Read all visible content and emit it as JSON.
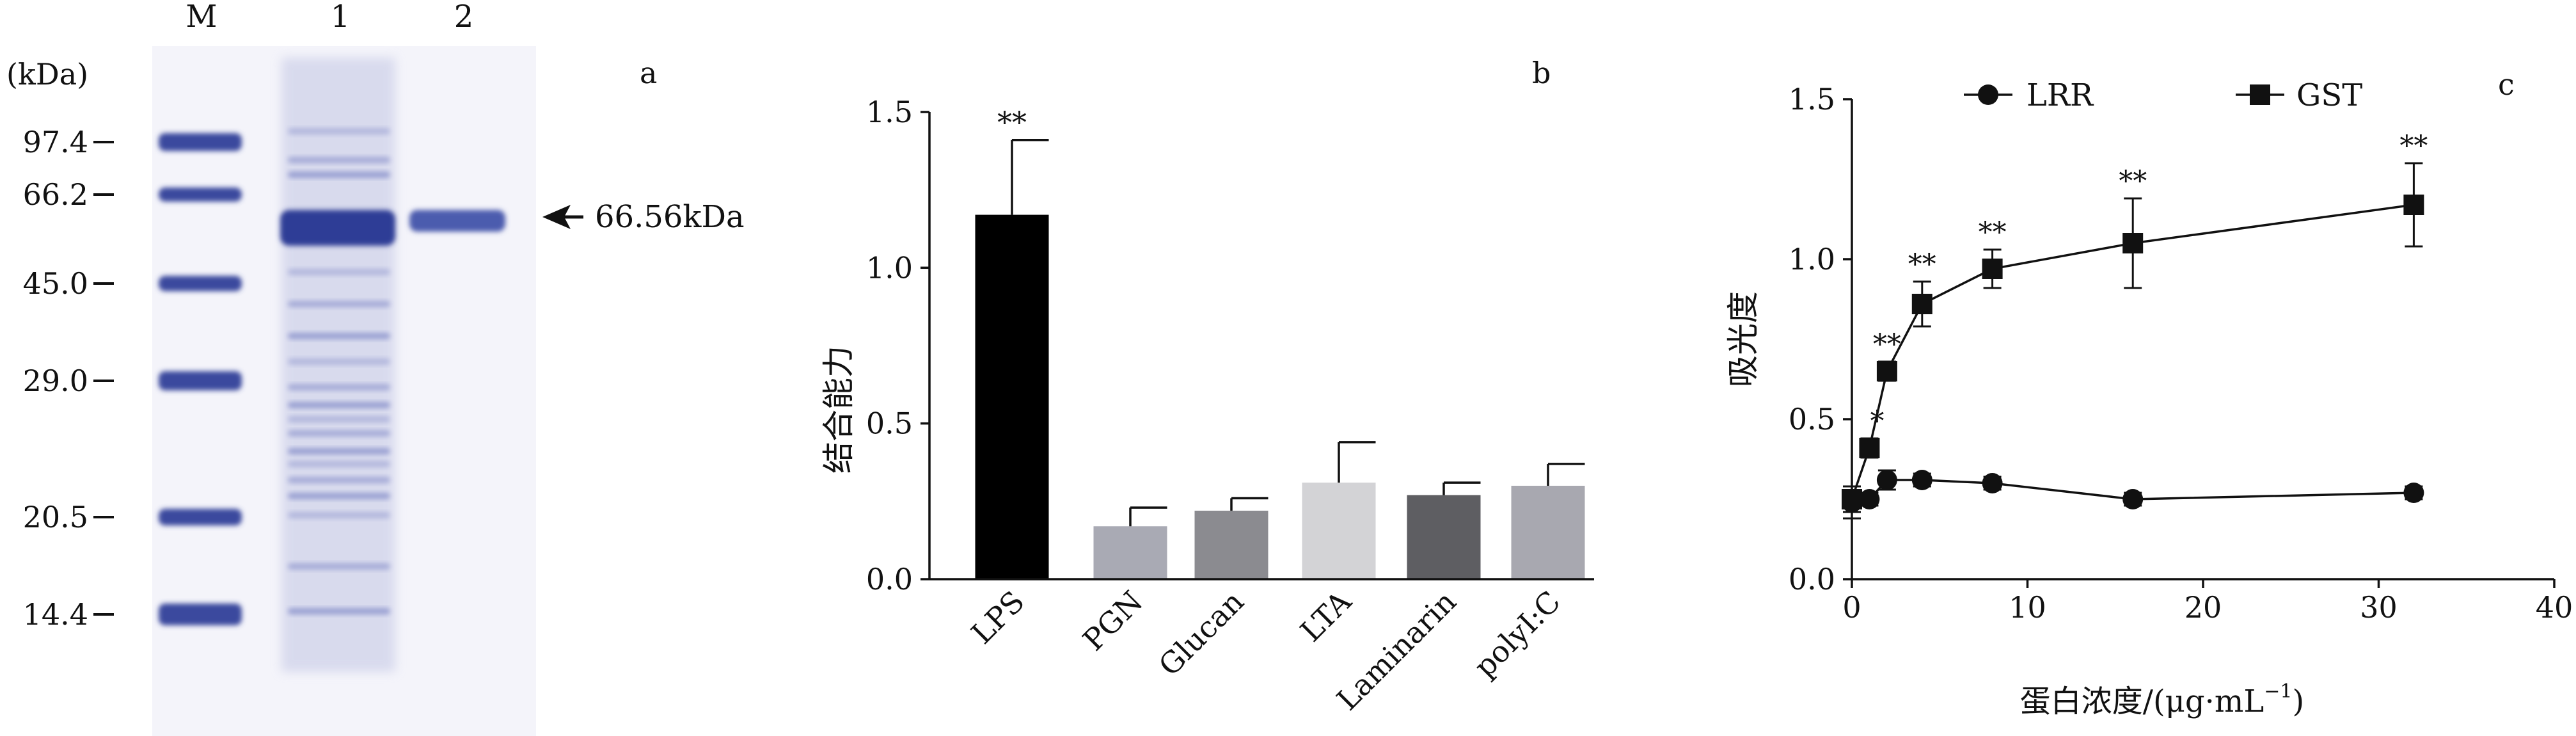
{
  "figure": {
    "panels": [
      {
        "panel_label": "a",
        "type": "gel",
        "units_label": "(kDa)",
        "lanes": [
          "M",
          "1",
          "2"
        ],
        "marker_bands_kda": [
          "97.4",
          "66.2",
          "45.0",
          "29.0",
          "20.5",
          "14.4"
        ],
        "band_annotation": "66.56kDa",
        "colors": {
          "band": "#3a4a9e",
          "background": "#f4f4fa"
        }
      },
      {
        "panel_label": "b",
        "type": "bar",
        "ylabel": "结合能力",
        "ylim": [
          0,
          1.5
        ],
        "yticks": [
          "0.0",
          "0.5",
          "1.0",
          "1.5"
        ],
        "categories": [
          "LPS",
          "PGN",
          "Glucan",
          "LTA",
          "Laminarin",
          "polyI:C"
        ],
        "values": [
          1.17,
          0.17,
          0.22,
          0.31,
          0.27,
          0.3
        ],
        "errors": [
          0.24,
          0.06,
          0.04,
          0.13,
          0.04,
          0.07
        ],
        "significance": [
          "**",
          "",
          "",
          "",
          "",
          ""
        ],
        "colors": [
          "#000000",
          "#a9aab4",
          "#8b8b90",
          "#d3d3d6",
          "#5e5e62",
          "#a8a8b0"
        ]
      },
      {
        "panel_label": "c",
        "type": "line",
        "xlabel": "蛋白浓度/(μg·mL",
        "xlabel_sup": "−1",
        "xlabel_end": ")",
        "ylabel": "吸光度",
        "xlim": [
          0,
          40
        ],
        "ylim": [
          0,
          1.5
        ],
        "xticks": [
          "0",
          "10",
          "20",
          "30",
          "40"
        ],
        "yticks": [
          "0.0",
          "0.5",
          "1.0",
          "1.5"
        ],
        "legend_position": "top",
        "series": [
          {
            "name": "LRR",
            "marker": "circle",
            "x": [
              0,
              1,
              2,
              4,
              8,
              16,
              32
            ],
            "y": [
              0.24,
              0.25,
              0.31,
              0.31,
              0.3,
              0.25,
              0.27
            ],
            "err": [
              0.05,
              0.02,
              0.03,
              0.02,
              0.02,
              0.02,
              0.02
            ]
          },
          {
            "name": "GST",
            "marker": "square",
            "x": [
              0,
              1,
              2,
              4,
              8,
              16,
              32
            ],
            "y": [
              0.25,
              0.41,
              0.65,
              0.86,
              0.97,
              1.05,
              1.17
            ],
            "err": [
              0.04,
              0.03,
              0.03,
              0.07,
              0.06,
              0.14,
              0.13
            ],
            "significance": [
              "",
              "*",
              "**",
              "**",
              "**",
              "**",
              "**"
            ]
          }
        ]
      }
    ]
  }
}
